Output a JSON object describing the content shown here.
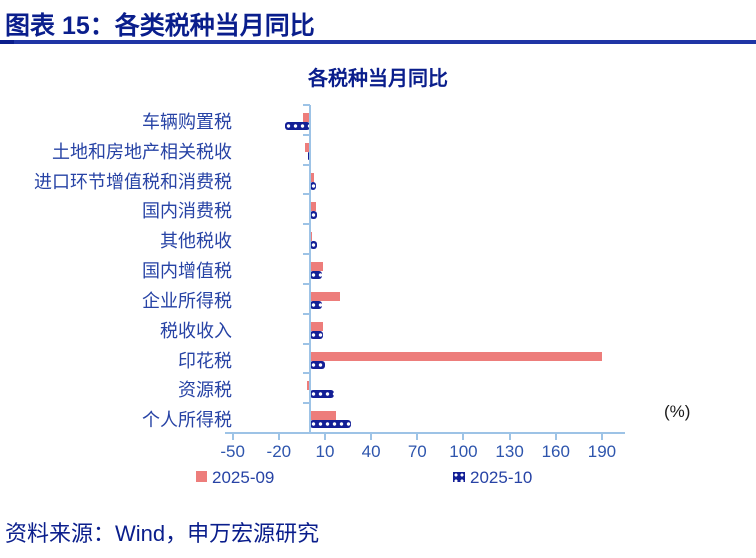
{
  "header": {
    "title": "图表 15：各类税种当月同比"
  },
  "footer": {
    "source": "资料来源：Wind，申万宏源研究"
  },
  "chart_data": {
    "type": "bar",
    "orientation": "horizontal",
    "title": "各税种当月同比",
    "unit_label": "(%)",
    "categories": [
      "车辆购置税",
      "土地和房地产相关税收",
      "进口环节增值税和消费税",
      "国内消费税",
      "其他税收",
      "国内增值税",
      "企业所得税",
      "税收收入",
      "印花税",
      "资源税",
      "个人所得税"
    ],
    "series": [
      {
        "name": "2025-09",
        "style": "solid",
        "color": "#ed7d7b",
        "values": [
          -4,
          -3,
          3,
          4,
          1,
          9,
          20,
          9,
          190,
          -2,
          17
        ]
      },
      {
        "name": "2025-10",
        "style": "dotted",
        "color": "#131f96",
        "values": [
          -16,
          -1,
          4,
          5,
          5,
          8,
          8,
          9,
          10,
          16,
          27
        ]
      }
    ],
    "xlim": [
      -55,
      205
    ],
    "xticks": [
      -50,
      -20,
      10,
      40,
      70,
      100,
      130,
      160,
      190
    ],
    "grid": false,
    "legend_position": "bottom",
    "colors": {
      "title_text": "#0a1e8c",
      "category_text": "#2743a5",
      "tick_text": "#2e55ad",
      "axis": "#9dc3e6"
    }
  }
}
